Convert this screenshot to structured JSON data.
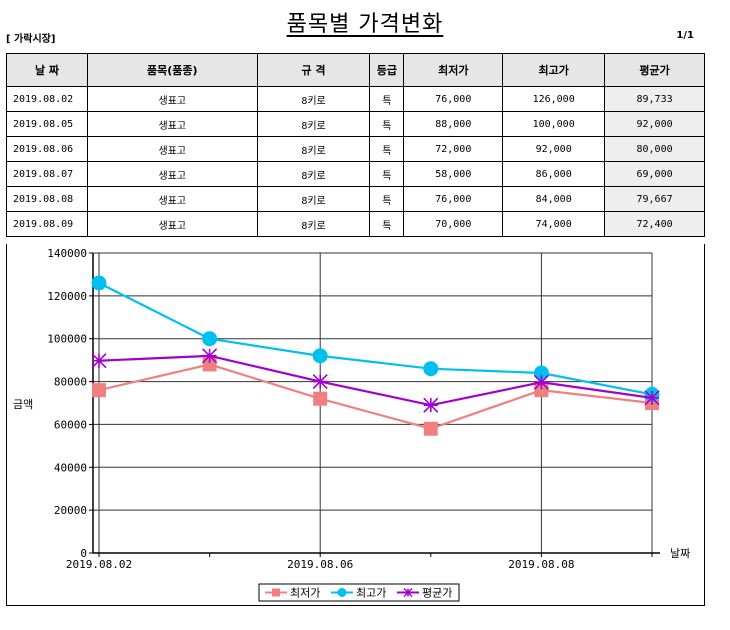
{
  "title": "품목별 가격변화",
  "market": "[ 가락시장]",
  "page": "1/1",
  "table": {
    "headers": [
      "날 짜",
      "품목(품종)",
      "규 격",
      "등급",
      "최저가",
      "최고가",
      "평균가"
    ],
    "rows": [
      [
        "2019.08.02",
        "생표고",
        "8키로",
        "특",
        "76,000",
        "126,000",
        "89,733"
      ],
      [
        "2019.08.05",
        "생표고",
        "8키로",
        "특",
        "88,000",
        "100,000",
        "92,000"
      ],
      [
        "2019.08.06",
        "생표고",
        "8키로",
        "특",
        "72,000",
        "92,000",
        "80,000"
      ],
      [
        "2019.08.07",
        "생표고",
        "8키로",
        "특",
        "58,000",
        "86,000",
        "69,000"
      ],
      [
        "2019.08.08",
        "생표고",
        "8키로",
        "특",
        "76,000",
        "84,000",
        "79,667"
      ],
      [
        "2019.08.09",
        "생표고",
        "8키로",
        "특",
        "70,000",
        "74,000",
        "72,400"
      ]
    ]
  },
  "chart_data": {
    "type": "line",
    "ylabel": "금액",
    "xlabel": "날짜",
    "ylim": [
      0,
      140000
    ],
    "yticks": [
      "0",
      "20000",
      "40000",
      "60000",
      "80000",
      "100000",
      "120000",
      "140000"
    ],
    "categories": [
      "2019.08.02",
      "2019.08.05",
      "2019.08.06",
      "2019.08.07",
      "2019.08.08",
      "2019.08.09"
    ],
    "xtick_labels": [
      "2019.08.02",
      "",
      "2019.08.06",
      "",
      "2019.08.08",
      ""
    ],
    "series": [
      {
        "name": "최저가",
        "color": "#f08080",
        "marker": "square",
        "values": [
          76000,
          88000,
          72000,
          58000,
          76000,
          70000
        ]
      },
      {
        "name": "최고가",
        "color": "#00c0f0",
        "marker": "circle",
        "values": [
          126000,
          100000,
          92000,
          86000,
          84000,
          74000
        ]
      },
      {
        "name": "평균가",
        "color": "#a000d0",
        "marker": "asterisk",
        "values": [
          89733,
          92000,
          80000,
          69000,
          79667,
          72400
        ]
      }
    ],
    "grid": true,
    "legend": "bottom"
  }
}
